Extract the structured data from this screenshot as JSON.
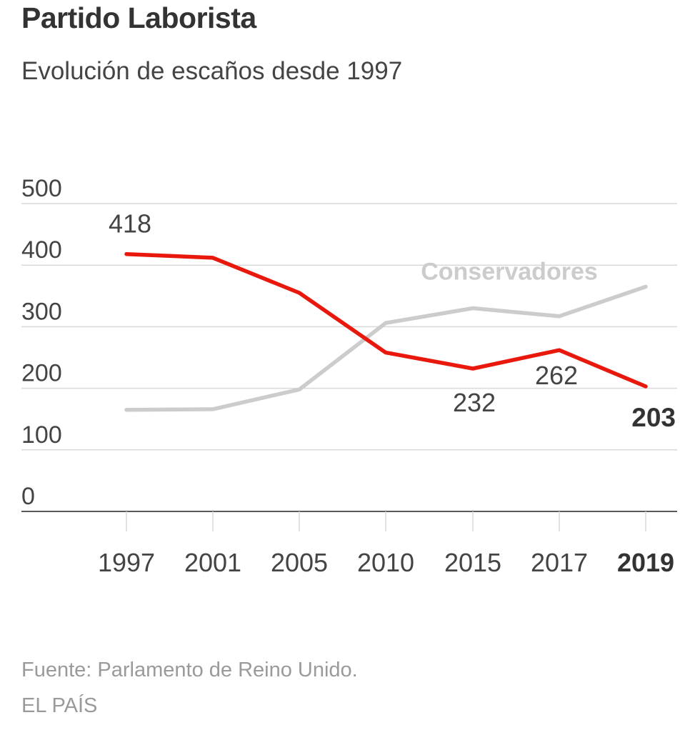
{
  "header": {
    "title": "Partido Laborista",
    "subtitle": "Evolución de escaños desde 1997"
  },
  "footer": {
    "source": "Fuente: Parlamento de Reino Unido.",
    "brand": "EL PAÍS"
  },
  "colors": {
    "labour": "#e8180c",
    "conservative": "#cccccc",
    "grid": "#d9d9d9",
    "axis": "#222222",
    "text": "#444444",
    "emphasis": "#333333"
  },
  "chart_data": {
    "type": "line",
    "title": "Partido Laborista",
    "subtitle": "Evolución de escaños desde 1997",
    "xlabel": "",
    "ylabel": "",
    "ylim": [
      0,
      500
    ],
    "yticks": [
      "0",
      "100",
      "200",
      "300",
      "400",
      "500"
    ],
    "categories": [
      "1997",
      "2001",
      "2005",
      "2010",
      "2015",
      "2017",
      "2019"
    ],
    "highlight_category": "2019",
    "grid": true,
    "series": [
      {
        "name": "Partido Laborista",
        "key": "labour",
        "values": [
          418,
          412,
          355,
          258,
          232,
          262,
          203
        ]
      },
      {
        "name": "Conservadores",
        "key": "conservative",
        "values": [
          165,
          166,
          198,
          306,
          330,
          317,
          365
        ]
      }
    ],
    "annotations": [
      {
        "text": "418",
        "series": 0,
        "index": 0,
        "bold": false
      },
      {
        "text": "232",
        "series": 0,
        "index": 4,
        "bold": false
      },
      {
        "text": "262",
        "series": 0,
        "index": 5,
        "bold": false
      },
      {
        "text": "203",
        "series": 0,
        "index": 6,
        "bold": true
      },
      {
        "text": "Conservadores",
        "series": 1,
        "index": 5,
        "bold": true
      }
    ]
  }
}
